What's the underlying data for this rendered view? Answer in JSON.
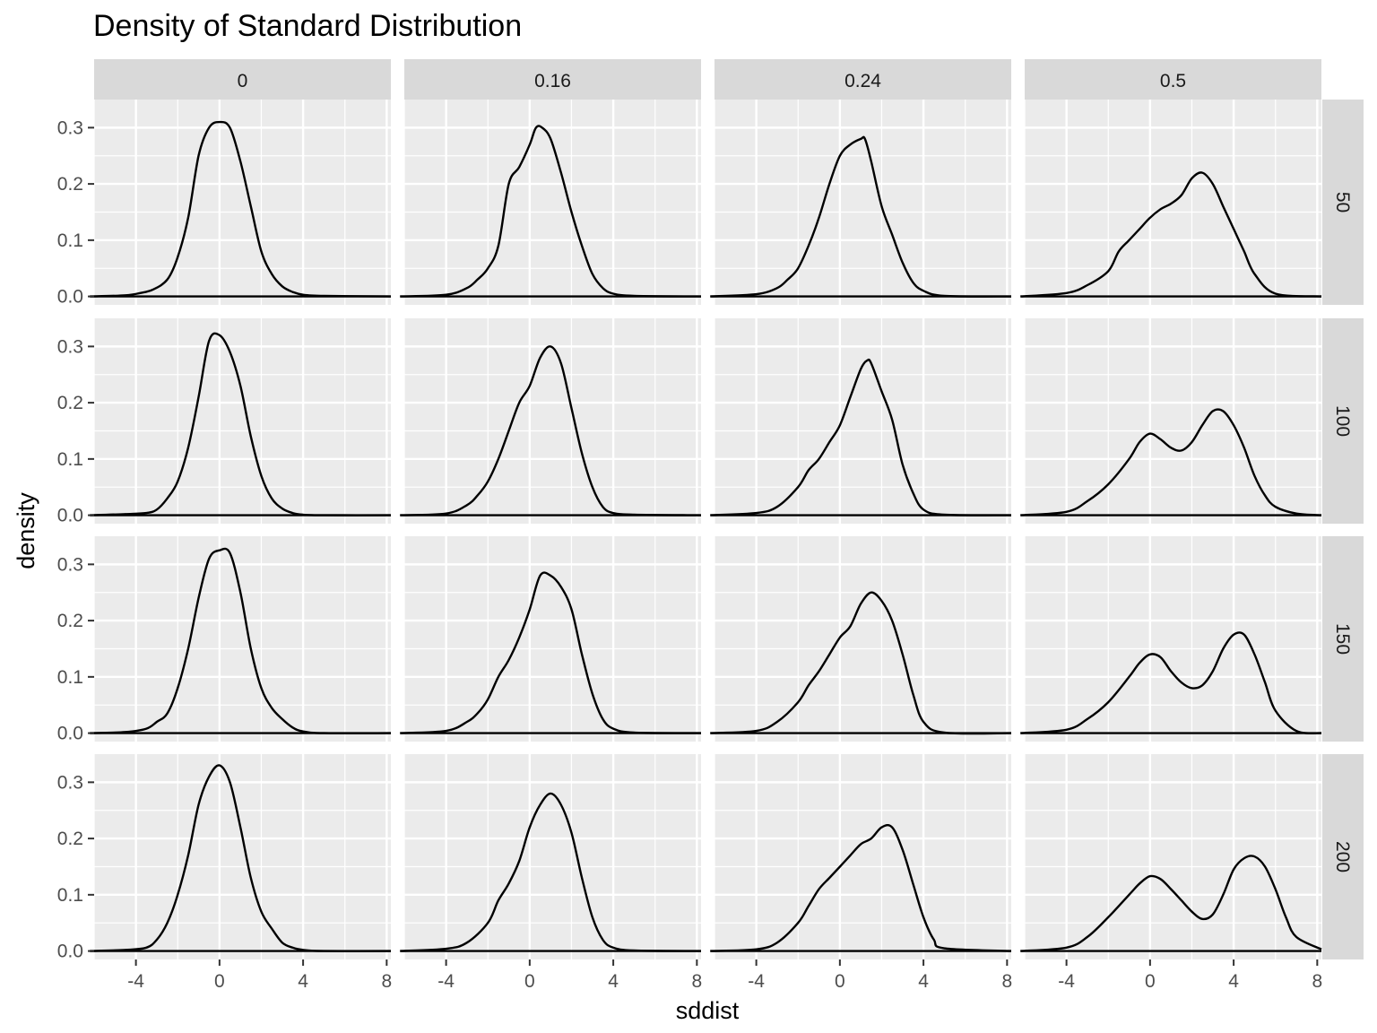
{
  "chart_data": {
    "type": "line",
    "title": "Density of Standard Distribution",
    "xlabel": "sddist",
    "ylabel": "density",
    "xlim": [
      -6.0,
      8.2
    ],
    "ylim": [
      -0.015,
      0.35
    ],
    "x_ticks": [
      -4,
      0,
      4,
      8
    ],
    "x_tick_labels": [
      "-4",
      "0",
      "4",
      "8"
    ],
    "y_ticks": [
      0,
      0.1,
      0.2,
      0.3
    ],
    "y_tick_labels": [
      "0.0",
      "0.1",
      "0.2",
      "0.3"
    ],
    "grid": true,
    "facet_cols": [
      "0",
      "0.16",
      "0.24",
      "0.5"
    ],
    "facet_rows": [
      "50",
      "100",
      "150",
      "200"
    ],
    "panels": [
      {
        "col": "0",
        "row": "50",
        "x": [
          -6.2,
          -4.5,
          -3.8,
          -3.2,
          -2.5,
          -2,
          -1.5,
          -1,
          -0.5,
          0,
          0.5,
          1,
          1.5,
          2,
          2.5,
          3,
          3.5,
          4,
          5,
          8.2
        ],
        "y": [
          0,
          0.002,
          0.006,
          0.012,
          0.03,
          0.07,
          0.14,
          0.25,
          0.3,
          0.31,
          0.3,
          0.24,
          0.16,
          0.08,
          0.04,
          0.018,
          0.008,
          0.003,
          0.001,
          0
        ]
      },
      {
        "col": "0.16",
        "row": "50",
        "x": [
          -6.2,
          -4,
          -3,
          -2.5,
          -2,
          -1.5,
          -1,
          -0.5,
          0,
          0.3,
          0.6,
          1,
          1.5,
          2,
          2.5,
          3,
          3.5,
          4,
          5,
          8.2
        ],
        "y": [
          0,
          0.003,
          0.015,
          0.03,
          0.05,
          0.09,
          0.2,
          0.23,
          0.27,
          0.3,
          0.3,
          0.28,
          0.22,
          0.15,
          0.09,
          0.04,
          0.015,
          0.005,
          0.001,
          0
        ]
      },
      {
        "col": "0.24",
        "row": "50",
        "x": [
          -6.2,
          -4,
          -3,
          -2.5,
          -2,
          -1.5,
          -1,
          -0.5,
          0,
          0.5,
          1,
          1.2,
          1.5,
          2,
          2.5,
          3,
          3.5,
          4,
          5,
          8.2
        ],
        "y": [
          0,
          0.004,
          0.015,
          0.03,
          0.05,
          0.09,
          0.14,
          0.2,
          0.25,
          0.27,
          0.28,
          0.28,
          0.24,
          0.16,
          0.11,
          0.06,
          0.025,
          0.01,
          0.001,
          0
        ]
      },
      {
        "col": "0.5",
        "row": "50",
        "x": [
          -6.2,
          -4,
          -3,
          -2,
          -1.5,
          -1,
          -0.5,
          0,
          0.5,
          1,
          1.5,
          2,
          2.5,
          3,
          3.5,
          4,
          4.5,
          5,
          6,
          8.2
        ],
        "y": [
          0,
          0.006,
          0.02,
          0.045,
          0.08,
          0.1,
          0.12,
          0.14,
          0.155,
          0.165,
          0.18,
          0.21,
          0.22,
          0.2,
          0.16,
          0.12,
          0.08,
          0.04,
          0.005,
          0
        ]
      },
      {
        "col": "0",
        "row": "100",
        "x": [
          -6.2,
          -4.5,
          -3.5,
          -3,
          -2.5,
          -2,
          -1.5,
          -1,
          -0.5,
          0,
          0.5,
          1,
          1.5,
          2,
          2.5,
          3,
          3.5,
          4,
          5,
          8.2
        ],
        "y": [
          0,
          0.002,
          0.004,
          0.01,
          0.03,
          0.06,
          0.12,
          0.21,
          0.31,
          0.32,
          0.29,
          0.23,
          0.14,
          0.07,
          0.03,
          0.012,
          0.004,
          0.001,
          0,
          0
        ]
      },
      {
        "col": "0.16",
        "row": "100",
        "x": [
          -6.2,
          -4,
          -3,
          -2.5,
          -2,
          -1.5,
          -1,
          -0.5,
          0,
          0.5,
          1,
          1.5,
          2,
          2.5,
          3,
          3.5,
          4,
          5,
          8.2
        ],
        "y": [
          0,
          0.003,
          0.018,
          0.035,
          0.06,
          0.1,
          0.15,
          0.2,
          0.23,
          0.28,
          0.3,
          0.27,
          0.19,
          0.11,
          0.05,
          0.015,
          0.004,
          0.001,
          0
        ]
      },
      {
        "col": "0.24",
        "row": "100",
        "x": [
          -6.2,
          -4,
          -3,
          -2,
          -1.5,
          -1,
          -0.5,
          0,
          0.5,
          1,
          1.3,
          1.5,
          2,
          2.5,
          3,
          3.5,
          4,
          5,
          8.2
        ],
        "y": [
          0,
          0.004,
          0.015,
          0.05,
          0.08,
          0.1,
          0.13,
          0.16,
          0.21,
          0.26,
          0.275,
          0.27,
          0.22,
          0.17,
          0.09,
          0.04,
          0.01,
          0.001,
          0
        ]
      },
      {
        "col": "0.5",
        "row": "100",
        "x": [
          -6.2,
          -4,
          -3,
          -2,
          -1,
          -0.5,
          0,
          0.5,
          1,
          1.5,
          2,
          2.5,
          3,
          3.5,
          4,
          4.5,
          5,
          5.5,
          6,
          7,
          8.2
        ],
        "y": [
          0,
          0.006,
          0.025,
          0.055,
          0.1,
          0.13,
          0.145,
          0.135,
          0.12,
          0.115,
          0.13,
          0.16,
          0.185,
          0.185,
          0.16,
          0.12,
          0.07,
          0.035,
          0.015,
          0.003,
          0
        ]
      },
      {
        "col": "0",
        "row": "150",
        "x": [
          -6.2,
          -4.5,
          -3.5,
          -3,
          -2.5,
          -2,
          -1.5,
          -1,
          -0.5,
          0,
          0.5,
          1,
          1.5,
          2,
          2.5,
          3,
          3.5,
          4,
          5,
          8.2
        ],
        "y": [
          0,
          0.002,
          0.008,
          0.02,
          0.035,
          0.08,
          0.15,
          0.24,
          0.31,
          0.325,
          0.32,
          0.25,
          0.15,
          0.08,
          0.045,
          0.025,
          0.01,
          0.003,
          0,
          0
        ]
      },
      {
        "col": "0.16",
        "row": "150",
        "x": [
          -6.2,
          -4,
          -3,
          -2.5,
          -2,
          -1.5,
          -1,
          -0.5,
          0,
          0.5,
          1,
          1.5,
          2,
          2.5,
          3,
          3.5,
          4,
          5,
          8.2
        ],
        "y": [
          0,
          0.004,
          0.02,
          0.035,
          0.06,
          0.1,
          0.13,
          0.17,
          0.22,
          0.28,
          0.28,
          0.26,
          0.22,
          0.14,
          0.07,
          0.025,
          0.008,
          0.001,
          0
        ]
      },
      {
        "col": "0.24",
        "row": "150",
        "x": [
          -6.2,
          -4,
          -3,
          -2,
          -1.5,
          -1,
          -0.5,
          0,
          0.5,
          1,
          1.5,
          2,
          2.5,
          3,
          3.5,
          4,
          5,
          8.2
        ],
        "y": [
          0,
          0.004,
          0.02,
          0.055,
          0.085,
          0.11,
          0.14,
          0.17,
          0.19,
          0.23,
          0.25,
          0.235,
          0.2,
          0.14,
          0.07,
          0.02,
          0.001,
          0
        ]
      },
      {
        "col": "0.5",
        "row": "150",
        "x": [
          -6.2,
          -4,
          -3,
          -2,
          -1,
          -0.5,
          0,
          0.5,
          1,
          1.5,
          2,
          2.5,
          3,
          3.5,
          4,
          4.5,
          5,
          5.5,
          6,
          7,
          8.2
        ],
        "y": [
          0,
          0.006,
          0.025,
          0.055,
          0.1,
          0.125,
          0.14,
          0.135,
          0.11,
          0.09,
          0.08,
          0.085,
          0.11,
          0.15,
          0.175,
          0.175,
          0.14,
          0.09,
          0.04,
          0.004,
          0
        ]
      },
      {
        "col": "0",
        "row": "200",
        "x": [
          -6.2,
          -4.5,
          -3.5,
          -3,
          -2.5,
          -2,
          -1.5,
          -1,
          -0.5,
          0,
          0.5,
          1,
          1.5,
          2,
          2.5,
          3,
          3.5,
          4,
          5,
          8.2
        ],
        "y": [
          0,
          0.002,
          0.006,
          0.02,
          0.05,
          0.1,
          0.17,
          0.26,
          0.31,
          0.33,
          0.3,
          0.22,
          0.13,
          0.07,
          0.04,
          0.015,
          0.006,
          0.002,
          0,
          0
        ]
      },
      {
        "col": "0.16",
        "row": "200",
        "x": [
          -6.2,
          -4,
          -3,
          -2,
          -1.5,
          -1,
          -0.5,
          0,
          0.5,
          1,
          1.5,
          2,
          2.5,
          3,
          3.5,
          4,
          5,
          8.2
        ],
        "y": [
          0,
          0.004,
          0.015,
          0.05,
          0.09,
          0.12,
          0.16,
          0.22,
          0.26,
          0.28,
          0.26,
          0.21,
          0.13,
          0.06,
          0.02,
          0.006,
          0.001,
          0
        ]
      },
      {
        "col": "0.24",
        "row": "200",
        "x": [
          -6.2,
          -4,
          -3,
          -2,
          -1.5,
          -1,
          -0.5,
          0,
          0.5,
          1,
          1.5,
          2,
          2.5,
          3,
          3.5,
          4,
          4.5,
          5,
          8.2
        ],
        "y": [
          0,
          0.003,
          0.015,
          0.05,
          0.08,
          0.11,
          0.13,
          0.15,
          0.17,
          0.19,
          0.2,
          0.22,
          0.22,
          0.18,
          0.12,
          0.06,
          0.02,
          0.005,
          0
        ]
      },
      {
        "col": "0.5",
        "row": "200",
        "x": [
          -6.2,
          -4,
          -3,
          -2,
          -1,
          -0.5,
          0,
          0.5,
          1,
          1.5,
          2,
          2.5,
          3,
          3.5,
          4,
          4.5,
          5,
          5.5,
          6,
          6.5,
          7,
          8.2
        ],
        "y": [
          0,
          0.006,
          0.025,
          0.06,
          0.1,
          0.12,
          0.133,
          0.128,
          0.11,
          0.09,
          0.07,
          0.057,
          0.065,
          0.1,
          0.145,
          0.165,
          0.168,
          0.15,
          0.11,
          0.06,
          0.025,
          0.003
        ]
      }
    ]
  }
}
